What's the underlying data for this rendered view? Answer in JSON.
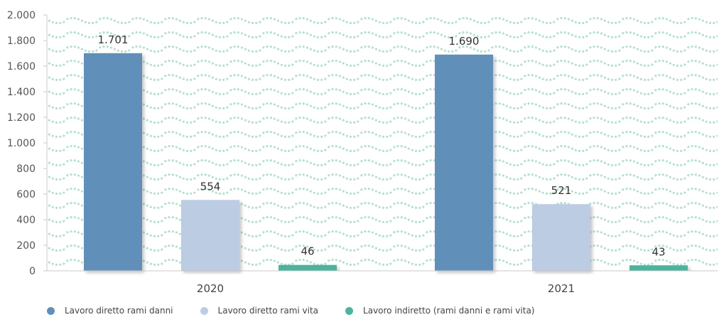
{
  "chart_data": {
    "type": "bar",
    "categories": [
      "2020",
      "2021"
    ],
    "series": [
      {
        "name": "Lavoro diretto rami danni",
        "values": [
          1701,
          1690
        ],
        "labels": [
          "1.701",
          "1.690"
        ],
        "color": "#6090BA"
      },
      {
        "name": "Lavoro diretto rami vita",
        "values": [
          554,
          521
        ],
        "labels": [
          "554",
          "521"
        ],
        "color": "#BCCCE2"
      },
      {
        "name": "Lavoro indiretto (rami danni e rami vita)",
        "values": [
          46,
          43
        ],
        "labels": [
          "46",
          "43"
        ],
        "color": "#4DB39B"
      }
    ],
    "ylim": [
      0,
      2000
    ],
    "yticks": [
      0,
      200,
      400,
      600,
      800,
      1000,
      1200,
      1400,
      1600,
      1800,
      2000
    ],
    "ytick_labels": [
      "0",
      "200",
      "400",
      "600",
      "800",
      "1.000",
      "1.200",
      "1.400",
      "1.600",
      "1.800",
      "2.000"
    ],
    "grid": false,
    "legend_position": "bottom-left",
    "background_pattern_color": "#B6E0D3"
  }
}
